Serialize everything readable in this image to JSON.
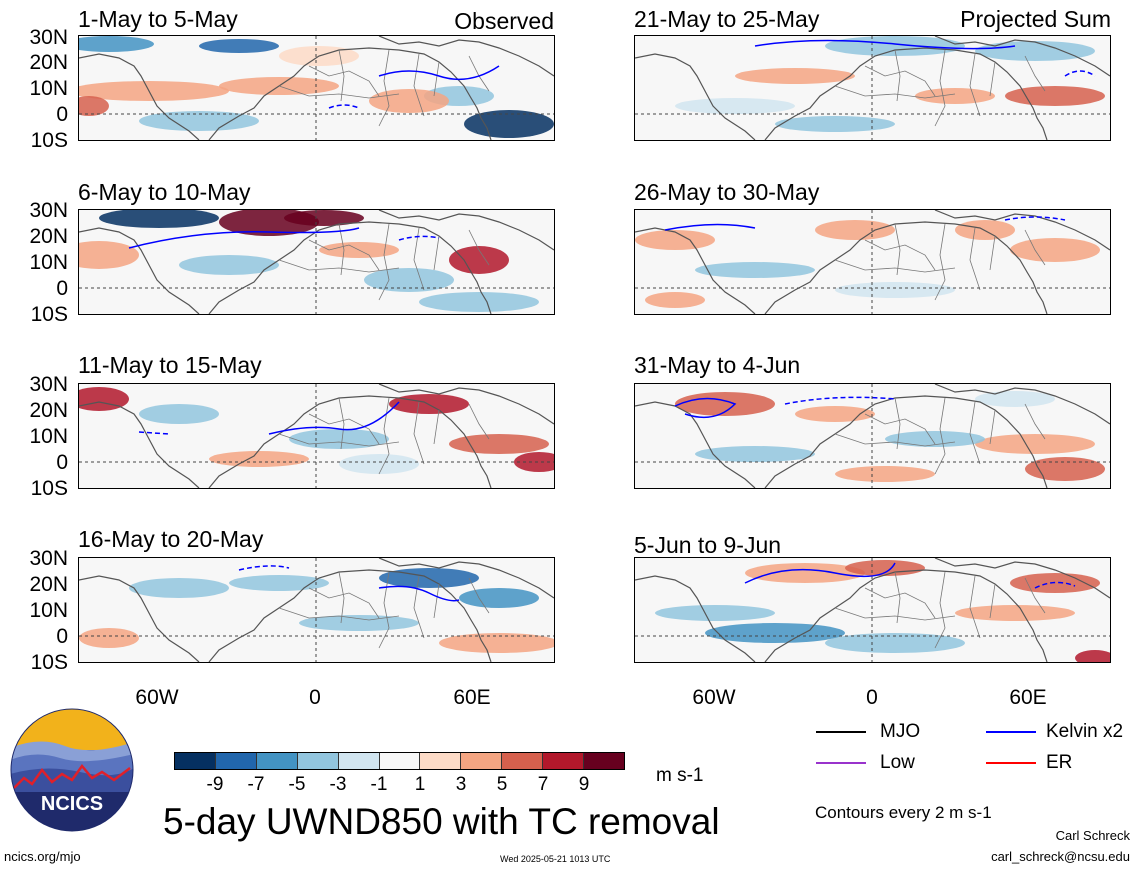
{
  "left_panels": [
    {
      "title": "1-May to 5-May",
      "side_label": "Observed"
    },
    {
      "title": "6-May to 10-May",
      "side_label": ""
    },
    {
      "title": "11-May to 15-May",
      "side_label": ""
    },
    {
      "title": "16-May to 20-May",
      "side_label": ""
    }
  ],
  "right_panels": [
    {
      "title": "21-May to 25-May",
      "side_label": "Projected Sum"
    },
    {
      "title": "26-May to 30-May",
      "side_label": ""
    },
    {
      "title": "31-May to 4-Jun",
      "side_label": ""
    },
    {
      "title": "5-Jun to 9-Jun",
      "side_label": ""
    }
  ],
  "lat_labels": [
    "30N",
    "20N",
    "10N",
    "0",
    "10S"
  ],
  "lon_labels": [
    "60W",
    "0",
    "60E"
  ],
  "colorbar": {
    "tick_labels": [
      "-9",
      "-7",
      "-5",
      "-3",
      "-1",
      "1",
      "3",
      "5",
      "7",
      "9"
    ],
    "colors": [
      "#053061",
      "#2166ac",
      "#4393c3",
      "#92c5de",
      "#d1e5f0",
      "#f7f7f7",
      "#fddbc7",
      "#f4a582",
      "#d6604d",
      "#b2182b",
      "#67001f"
    ],
    "units": "m s-1"
  },
  "title": "5-day UWND850 with TC removal",
  "legend": [
    {
      "label": "MJO",
      "color": "#000000"
    },
    {
      "label": "Kelvin x2",
      "color": "#0000ff"
    },
    {
      "label": "Low",
      "color": "#9933cc"
    },
    {
      "label": "ER",
      "color": "#ff0000"
    }
  ],
  "contour_note": "Contours every 2 m s-1",
  "author": "Carl Schreck",
  "email": "carl_schreck@ncsu.edu",
  "site": "ncics.org/mjo",
  "timestamp": "Wed 2025-05-21 1013 UTC",
  "logo_text": "NCICS"
}
